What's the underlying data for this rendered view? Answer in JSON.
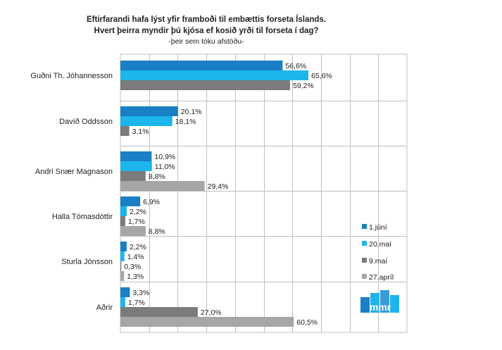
{
  "chart_data": {
    "type": "bar",
    "orientation": "horizontal",
    "title_lines": [
      "Eftirfarandi hafa lýst yfir framboði til embættis forseta Íslands.",
      "Hvert þeirra myndir þú kjósa ef kosið yrði til forseta í dag?"
    ],
    "subtitle": "-þeir sem tóku afstöðu-",
    "categories": [
      "Guðni Th. Jóhannesson",
      "Davíð Oddsson",
      "Andri Snær Magnason",
      "Halla Tómasdóttir",
      "Sturla Jónsson",
      "Aðrir"
    ],
    "series": [
      {
        "name": "1.júní",
        "color": "#1a7fc4",
        "values": [
          56.6,
          20.1,
          10.9,
          6.9,
          2.2,
          3.3
        ],
        "labels": [
          "56,6%",
          "20,1%",
          "10,9%",
          "6,9%",
          "2,2%",
          "3,3%"
        ]
      },
      {
        "name": "20.maí",
        "color": "#1eb4ec",
        "values": [
          65.6,
          18.1,
          11.0,
          2.2,
          1.4,
          1.7
        ],
        "labels": [
          "65,6%",
          "18,1%",
          "11,0%",
          "2,2%",
          "1,4%",
          "1,7%"
        ]
      },
      {
        "name": "9.maí",
        "color": "#7b7b7b",
        "values": [
          59.2,
          3.1,
          8.8,
          1.7,
          0.3,
          27.0
        ],
        "labels": [
          "59,2%",
          "3,1%",
          "8,8%",
          "1,7%",
          "0,3%",
          "27,0%"
        ]
      },
      {
        "name": "27.apríl",
        "color": "#a6a6a6",
        "values": [
          null,
          null,
          29.4,
          8.8,
          1.3,
          60.5
        ],
        "labels": [
          "",
          "",
          "29,4%",
          "8,8%",
          "1,3%",
          "60,5%"
        ]
      }
    ],
    "xlim": [
      0,
      100
    ],
    "grid": true,
    "legend_position": "right",
    "logo_text": "mmr"
  }
}
